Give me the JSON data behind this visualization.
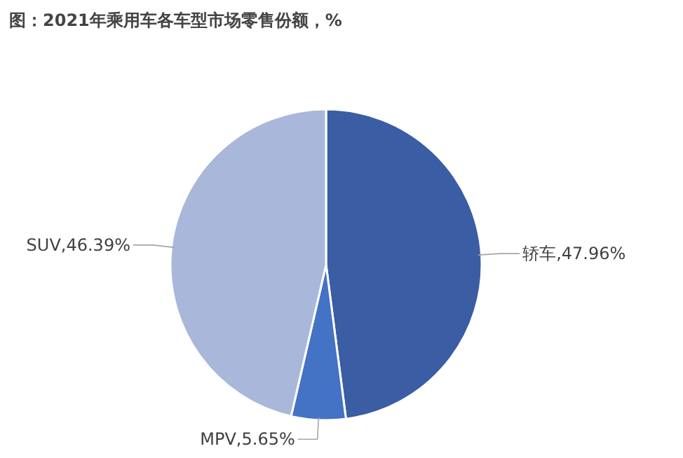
{
  "chart_data": {
    "type": "pie",
    "title": "图：2021年乘用车各车型市场零售份额，%",
    "categories": [
      "轿车",
      "MPV",
      "SUV"
    ],
    "values": [
      47.96,
      5.65,
      46.39
    ],
    "colors": [
      "#3a5da4",
      "#4472c4",
      "#a9b7db"
    ],
    "value_labels": [
      "47.96%",
      "5.65%",
      "46.39%"
    ]
  }
}
